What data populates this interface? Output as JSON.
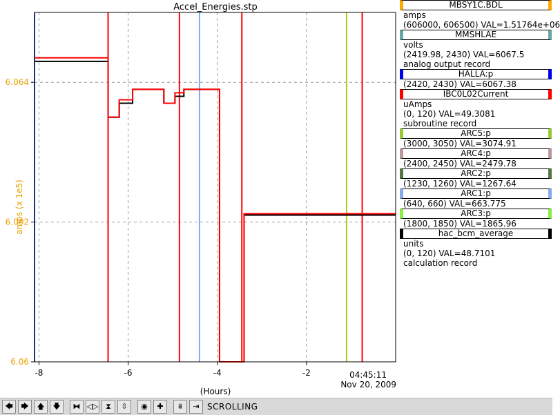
{
  "chart_data": {
    "type": "line",
    "title": "Accel_Energies.stp",
    "xlabel": "(Hours)",
    "ylabel": "amps (x 1e5)",
    "xlim": [
      -8.1,
      0
    ],
    "ylim": [
      6.06,
      6.065
    ],
    "x_ticks": [
      -8,
      -6,
      -4,
      -2
    ],
    "x_tick_labels": [
      "-8",
      "-6",
      "-4",
      "-2"
    ],
    "y_ticks": [
      6.06,
      6.062,
      6.064
    ],
    "y_tick_labels": [
      "6.06",
      "6.062",
      "6.064"
    ],
    "time_label": "04:45:11",
    "date_label": "Nov 20, 2009",
    "grid": true,
    "series": [
      {
        "name": "MBSY1C.BDL",
        "color": "#000000",
        "x": [
          -8.1,
          -6.5,
          -6.45,
          -6.2,
          -5.9,
          -5.5,
          -5.2,
          -4.95,
          -4.75,
          -4.5,
          -4.25,
          -4.0,
          -3.95,
          -3.55,
          -3.4,
          -3.0,
          -2.0,
          -1.0,
          0
        ],
        "y": [
          6.0643,
          6.0643,
          6.0635,
          6.0637,
          6.0639,
          6.0639,
          6.0637,
          6.0638,
          6.0639,
          6.0639,
          6.0639,
          6.0639,
          6.06,
          6.06,
          6.0621,
          6.0621,
          6.0621,
          6.0621,
          6.0621
        ]
      },
      {
        "name": "IBC0L02Current",
        "color": "#ff0000",
        "x": [
          -8.1,
          -6.5,
          -6.45,
          -6.2,
          -5.9,
          -5.5,
          -5.2,
          -4.95,
          -4.75,
          -4.5,
          -4.25,
          -4.0,
          -3.95,
          -3.55,
          -3.4,
          -3.0,
          -2.0,
          -1.0,
          0
        ],
        "y": [
          6.06435,
          6.06435,
          6.0635,
          6.06375,
          6.0639,
          6.0639,
          6.0637,
          6.06385,
          6.0639,
          6.0639,
          6.0639,
          6.0639,
          6.06,
          6.06,
          6.06212,
          6.06212,
          6.06212,
          6.06212,
          6.06212
        ]
      }
    ],
    "vertical_markers": [
      {
        "x": -8.1,
        "color": "#3366ff"
      },
      {
        "x": -6.45,
        "color": "#ff0000"
      },
      {
        "x": -4.85,
        "color": "#ff0000"
      },
      {
        "x": -4.4,
        "color": "#77aaff"
      },
      {
        "x": -3.45,
        "color": "#ff0000"
      },
      {
        "x": -1.1,
        "color": "#aacc22"
      },
      {
        "x": -0.75,
        "color": "#ff0000"
      }
    ]
  },
  "legend": [
    {
      "name": "MBSY1C.BDL",
      "color": "#ffaa00",
      "lines": [
        "amps",
        "(606000, 606500)  VAL=1.51764e+06"
      ]
    },
    {
      "name": "MMSHLAE",
      "color": "#6aa6a6",
      "lines": [
        "volts",
        "(2419.98, 2430)  VAL=6067.5",
        "analog output record"
      ]
    },
    {
      "name": "HALLA:p",
      "color": "#0000ee",
      "lines": [
        "(2420, 2430)  VAL=6067.38"
      ]
    },
    {
      "name": "IBC0L02Current",
      "color": "#ff0000",
      "lines": [
        "uAmps",
        "(0, 120)  VAL=49.3081",
        "subroutine record"
      ]
    },
    {
      "name": "ARC5:p",
      "color": "#99cc33",
      "lines": [
        "(3000, 3050)  VAL=3074.91"
      ]
    },
    {
      "name": "ARC4:p",
      "color": "#bb9999",
      "lines": [
        "(2400, 2450)  VAL=2479.78"
      ]
    },
    {
      "name": "ARC2:p",
      "color": "#557744",
      "lines": [
        "(1230, 1260)  VAL=1267.64"
      ]
    },
    {
      "name": "ARC1:p",
      "color": "#88aaee",
      "lines": [
        "(640, 660)  VAL=663.775"
      ]
    },
    {
      "name": "ARC3:p",
      "color": "#88ee44",
      "lines": [
        "(1800, 1850)  VAL=1865.96"
      ]
    },
    {
      "name": "hac_bcm_average",
      "color": "#000000",
      "lines": [
        "units",
        "(0, 120)  VAL=48.7101",
        "calculation record"
      ]
    }
  ],
  "toolbar": {
    "buttons": [
      {
        "name": "pan-left-button",
        "icon": "arrow-left-icon",
        "glyph": "🡄"
      },
      {
        "name": "pan-right-button",
        "icon": "arrow-right-icon",
        "glyph": "🡆"
      },
      {
        "name": "pan-up-button",
        "icon": "arrow-up-icon",
        "glyph": "🡅"
      },
      {
        "name": "pan-down-button",
        "icon": "arrow-down-icon",
        "glyph": "🡇"
      },
      {
        "name": "zoom-in-x-button",
        "icon": "zoom-in-x-icon",
        "glyph": "⧓"
      },
      {
        "name": "zoom-out-x-button",
        "icon": "zoom-out-x-icon",
        "glyph": "◁▷"
      },
      {
        "name": "zoom-in-y-button",
        "icon": "zoom-in-y-icon",
        "glyph": "⧗"
      },
      {
        "name": "zoom-out-y-button",
        "icon": "zoom-out-y-icon",
        "glyph": "⇳"
      },
      {
        "name": "reset-button",
        "icon": "reset-icon",
        "glyph": "◉"
      },
      {
        "name": "add-button",
        "icon": "plus-icon",
        "glyph": "✚"
      },
      {
        "name": "auto-scale-button",
        "icon": "auto-scale-icon",
        "glyph": "⩩"
      },
      {
        "name": "go-to-now-button",
        "icon": "go-to-now-icon",
        "glyph": "⇥"
      }
    ],
    "status": "SCROLLING"
  }
}
